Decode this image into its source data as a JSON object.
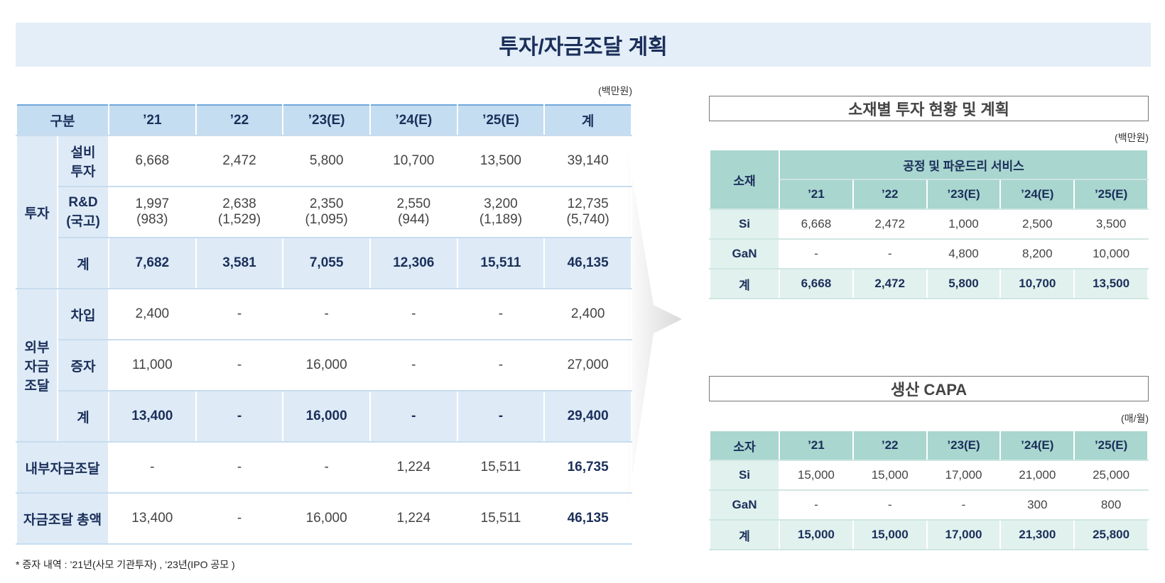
{
  "title": "투자/자금조달 계획",
  "main_table": {
    "unit": "(백만원)",
    "header": [
      "구분",
      "’21",
      "’22",
      "’23(E)",
      "’24(E)",
      "’25(E)",
      "계"
    ],
    "groups": [
      {
        "label": "투자",
        "rows": [
          {
            "label": "설비\n투자",
            "cells": [
              "6,668",
              "2,472",
              "5,800",
              "10,700",
              "13,500",
              "39,140"
            ]
          },
          {
            "label": "R&D\n(국고)",
            "cells": [
              "1,997\n(983)",
              "2,638\n(1,529)",
              "2,350\n(1,095)",
              "2,550\n(944)",
              "3,200\n(1,189)",
              "12,735\n(5,740)"
            ]
          },
          {
            "label": "계",
            "cells": [
              "7,682",
              "3,581",
              "7,055",
              "12,306",
              "15,511",
              "46,135"
            ]
          }
        ]
      },
      {
        "label": "외부\n자금\n조달",
        "rows": [
          {
            "label": "차입",
            "cells": [
              "2,400",
              "-",
              "-",
              "-",
              "-",
              "2,400"
            ]
          },
          {
            "label": "증자",
            "cells": [
              "11,000",
              "-",
              "16,000",
              "-",
              "-",
              "27,000"
            ]
          },
          {
            "label": "계",
            "cells": [
              "13,400",
              "-",
              "16,000",
              "-",
              "-",
              "29,400"
            ]
          }
        ]
      },
      {
        "label": "내부자금조달",
        "cells": [
          "-",
          "-",
          "-",
          "1,224",
          "15,511",
          "16,735"
        ]
      },
      {
        "label": "자금조달 총액",
        "cells": [
          "13,400",
          "-",
          "16,000",
          "1,224",
          "15,511",
          "46,135"
        ]
      }
    ],
    "note": "* 증자 내역 : ’21년(사모 기관투자) , ’23년(IPO 공모 )"
  },
  "material_table": {
    "title": "소재별 투자 현황 및 계획",
    "unit": "(백만원)",
    "corner": "소재",
    "span": "공정 및 파운드리 서비스",
    "years": [
      "’21",
      "’22",
      "’23(E)",
      "’24(E)",
      "’25(E)"
    ],
    "rows": [
      {
        "label": "Si",
        "cells": [
          "6,668",
          "2,472",
          "1,000",
          "2,500",
          "3,500"
        ]
      },
      {
        "label": "GaN",
        "cells": [
          "-",
          "-",
          "4,800",
          "8,200",
          "10,000"
        ]
      },
      {
        "label": "계",
        "cells": [
          "6,668",
          "2,472",
          "5,800",
          "10,700",
          "13,500"
        ]
      }
    ]
  },
  "capa_table": {
    "title": "생산 CAPA",
    "unit": "(매/월)",
    "corner": "소자",
    "years": [
      "’21",
      "’22",
      "’23(E)",
      "’24(E)",
      "’25(E)"
    ],
    "rows": [
      {
        "label": "Si",
        "cells": [
          "15,000",
          "15,000",
          "17,000",
          "21,000",
          "25,000"
        ]
      },
      {
        "label": "GaN",
        "cells": [
          "-",
          "-",
          "-",
          "300",
          "800"
        ]
      },
      {
        "label": "계",
        "cells": [
          "15,000",
          "15,000",
          "17,000",
          "21,300",
          "25,800"
        ]
      }
    ]
  }
}
